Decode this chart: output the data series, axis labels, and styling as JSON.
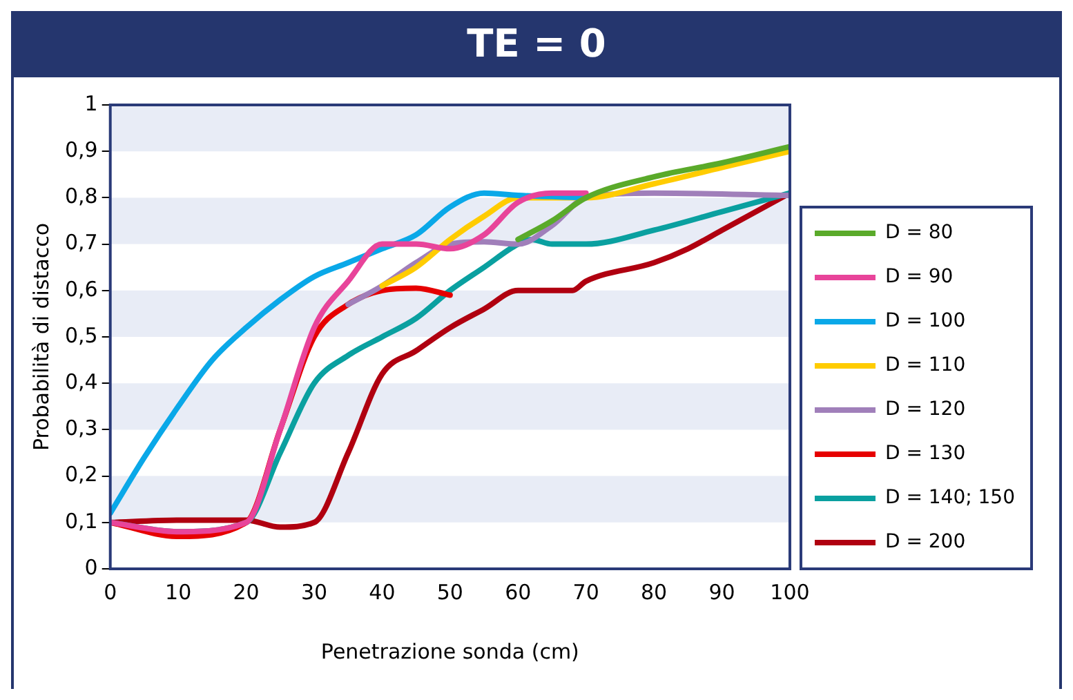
{
  "chart_data": {
    "type": "line",
    "title": "TE = 0",
    "xlabel": "Penetrazione sonda (cm)",
    "ylabel": "Probabilità di distacco",
    "xlim": [
      0,
      100
    ],
    "xticks": [
      0,
      10,
      20,
      30,
      40,
      50,
      60,
      70,
      80,
      90,
      100
    ],
    "ylim": [
      0,
      1
    ],
    "yticks": [
      0,
      {
        "value": 0.1,
        "label": "0,1"
      },
      {
        "value": 0.2,
        "label": "0,2"
      },
      {
        "value": 0.3,
        "label": "0,3"
      },
      {
        "value": 0.4,
        "label": "0,4"
      },
      {
        "value": 0.5,
        "label": "0,5"
      },
      {
        "value": 0.6,
        "label": "0,6"
      },
      {
        "value": 0.7,
        "label": "0,7"
      },
      {
        "value": 0.8,
        "label": "0,8"
      },
      {
        "value": 0.9,
        "label": "0,9"
      },
      1
    ],
    "legend": "right",
    "marker": "none",
    "line_style": "solid",
    "series": [
      {
        "name": "D = 80",
        "color": "#5aaa2a",
        "x": [
          60,
          65,
          70,
          80,
          90,
          100
        ],
        "values": [
          0.71,
          0.75,
          0.8,
          0.845,
          0.875,
          0.91
        ]
      },
      {
        "name": "D = 90",
        "color": "#e8449a",
        "x": [
          0,
          10,
          20,
          25,
          30,
          35,
          40,
          45,
          50,
          55,
          60,
          65,
          70
        ],
        "values": [
          0.1,
          0.08,
          0.1,
          0.3,
          0.52,
          0.62,
          0.7,
          0.7,
          0.69,
          0.72,
          0.79,
          0.81,
          0.81
        ]
      },
      {
        "name": "D = 100",
        "color": "#0aa8e8",
        "x": [
          0,
          5,
          10,
          15,
          20,
          25,
          30,
          35,
          40,
          45,
          50,
          55,
          60,
          70
        ],
        "values": [
          0.12,
          0.24,
          0.35,
          0.45,
          0.52,
          0.58,
          0.63,
          0.66,
          0.69,
          0.72,
          0.78,
          0.81,
          0.805,
          0.8
        ]
      },
      {
        "name": "D = 110",
        "color": "#ffcc00",
        "x": [
          40,
          45,
          50,
          55,
          60,
          65,
          70,
          80,
          90,
          100
        ],
        "values": [
          0.61,
          0.65,
          0.71,
          0.76,
          0.8,
          0.8,
          0.8,
          0.83,
          0.865,
          0.9
        ]
      },
      {
        "name": "D = 120",
        "color": "#a07fba",
        "x": [
          35,
          40,
          45,
          50,
          55,
          60,
          65,
          70,
          80,
          100
        ],
        "values": [
          0.57,
          0.61,
          0.66,
          0.7,
          0.705,
          0.7,
          0.74,
          0.8,
          0.81,
          0.805
        ]
      },
      {
        "name": "D = 130",
        "color": "#e60000",
        "x": [
          0,
          10,
          20,
          25,
          30,
          35,
          40,
          45,
          50
        ],
        "values": [
          0.1,
          0.07,
          0.1,
          0.3,
          0.5,
          0.57,
          0.6,
          0.605,
          0.59
        ]
      },
      {
        "name": "D = 140; 150",
        "color": "#0aa0a0",
        "x": [
          0,
          10,
          20,
          25,
          30,
          35,
          40,
          45,
          50,
          55,
          60,
          62,
          65,
          70,
          80,
          90,
          100
        ],
        "values": [
          0.1,
          0.08,
          0.1,
          0.25,
          0.4,
          0.46,
          0.5,
          0.54,
          0.6,
          0.65,
          0.7,
          0.71,
          0.7,
          0.7,
          0.73,
          0.77,
          0.81
        ]
      },
      {
        "name": "D = 200",
        "color": "#b00010",
        "x": [
          0,
          10,
          20,
          25,
          30,
          35,
          40,
          45,
          50,
          55,
          60,
          65,
          68,
          70,
          80,
          85,
          90,
          100
        ],
        "values": [
          0.1,
          0.105,
          0.105,
          0.09,
          0.1,
          0.25,
          0.42,
          0.47,
          0.52,
          0.56,
          0.6,
          0.6,
          0.6,
          0.62,
          0.66,
          0.69,
          0.73,
          0.81
        ]
      }
    ]
  }
}
